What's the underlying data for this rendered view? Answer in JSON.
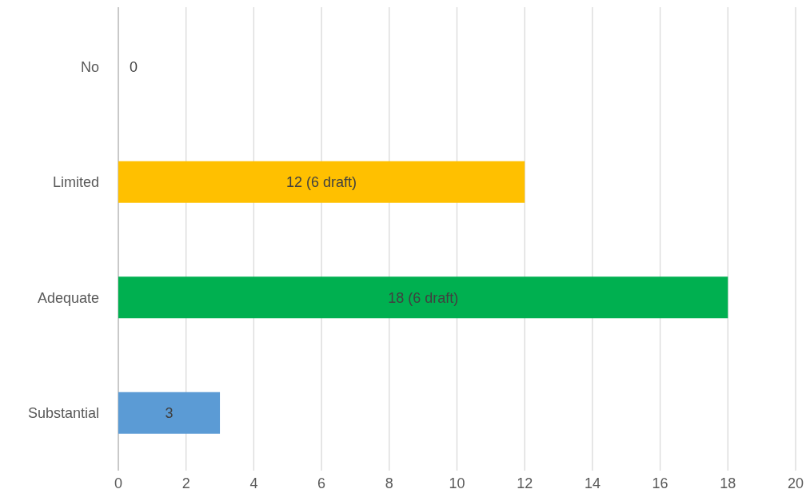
{
  "chart_data": {
    "type": "bar",
    "orientation": "horizontal",
    "categories": [
      "No",
      "Limited",
      "Adequate",
      "Substantial"
    ],
    "values": [
      0,
      12,
      18,
      3
    ],
    "colors": [
      "#a5a5a5",
      "#ffc000",
      "#00b050",
      "#5b9bd5"
    ],
    "value_labels": [
      "0",
      "12 (6 draft)",
      "18 (6 draft)",
      "3"
    ],
    "xlim": [
      0,
      20
    ],
    "xticks": [
      0,
      2,
      4,
      6,
      8,
      10,
      12,
      14,
      16,
      18,
      20
    ],
    "grid": "x"
  }
}
